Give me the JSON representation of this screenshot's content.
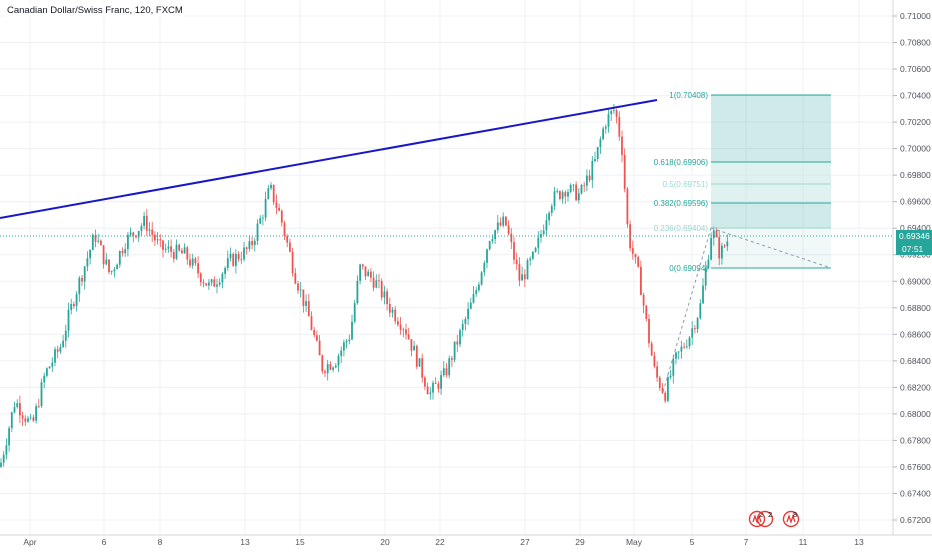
{
  "header": {
    "title": "Canadian Dollar/Swiss Franc, 120, FXCM"
  },
  "colors": {
    "up": "#26a69a",
    "down": "#ef5350",
    "trendline": "#1818c8",
    "fib_fill": "#26a69a",
    "grid": "#eef0f4",
    "event": "#e53935"
  },
  "price_axis": {
    "labels": [
      "0.71000",
      "0.70800",
      "0.70600",
      "0.70400",
      "0.70200",
      "0.70000",
      "0.69800",
      "0.69600",
      "0.69400",
      "0.69200",
      "0.69000",
      "0.68800",
      "0.68600",
      "0.68400",
      "0.68200",
      "0.68000",
      "0.67800",
      "0.67600",
      "0.67400",
      "0.67200"
    ],
    "last_price": "0.69346",
    "countdown": "07:51"
  },
  "time_axis": {
    "labels": [
      "Apr",
      "6",
      "8",
      "13",
      "15",
      "20",
      "22",
      "27",
      "29",
      "May",
      "5",
      "7",
      "11",
      "13"
    ]
  },
  "fibonacci": {
    "levels": [
      {
        "ratio": 1,
        "label": "1(0.70408)"
      },
      {
        "ratio": 0.618,
        "label": "0.618(0.69906)"
      },
      {
        "ratio": 0.5,
        "label": "0.5(0.69751)"
      },
      {
        "ratio": 0.382,
        "label": "0.382(0.69596)"
      },
      {
        "ratio": 0.236,
        "label": "0.236(0.69404)"
      },
      {
        "ratio": 0,
        "label": "0(0.69094)"
      }
    ]
  },
  "events": [
    {
      "icon": "economic-event-icon",
      "count": "2"
    },
    {
      "icon": "economic-event-icon",
      "count": "2"
    },
    {
      "icon": "economic-event-icon",
      "count": "8"
    }
  ],
  "chart_data": {
    "type": "candlestick",
    "symbol": "CADCHF",
    "interval": "120",
    "ylim": [
      0.671,
      0.7115
    ],
    "last": 0.69346,
    "price_path": [
      [
        0,
        0.676
      ],
      [
        15,
        0.681
      ],
      [
        32,
        0.679
      ],
      [
        45,
        0.683
      ],
      [
        60,
        0.685
      ],
      [
        75,
        0.689
      ],
      [
        95,
        0.6935
      ],
      [
        110,
        0.6905
      ],
      [
        125,
        0.693
      ],
      [
        145,
        0.6945
      ],
      [
        160,
        0.6925
      ],
      [
        185,
        0.692
      ],
      [
        210,
        0.6895
      ],
      [
        230,
        0.6915
      ],
      [
        250,
        0.6925
      ],
      [
        262,
        0.695
      ],
      [
        270,
        0.697
      ],
      [
        280,
        0.695
      ],
      [
        295,
        0.6905
      ],
      [
        310,
        0.687
      ],
      [
        322,
        0.6835
      ],
      [
        335,
        0.684
      ],
      [
        350,
        0.686
      ],
      [
        360,
        0.691
      ],
      [
        375,
        0.69
      ],
      [
        390,
        0.688
      ],
      [
        405,
        0.6865
      ],
      [
        420,
        0.6835
      ],
      [
        430,
        0.6815
      ],
      [
        445,
        0.683
      ],
      [
        460,
        0.686
      ],
      [
        475,
        0.689
      ],
      [
        490,
        0.6935
      ],
      [
        505,
        0.6945
      ],
      [
        520,
        0.69
      ],
      [
        535,
        0.692
      ],
      [
        550,
        0.696
      ],
      [
        565,
        0.697
      ],
      [
        580,
        0.6965
      ],
      [
        595,
        0.699
      ],
      [
        605,
        0.702
      ],
      [
        615,
        0.703
      ],
      [
        622,
        0.7
      ],
      [
        628,
        0.6935
      ],
      [
        640,
        0.69
      ],
      [
        648,
        0.686
      ],
      [
        655,
        0.683
      ],
      [
        665,
        0.6815
      ],
      [
        675,
        0.684
      ],
      [
        690,
        0.686
      ],
      [
        700,
        0.688
      ],
      [
        712,
        0.694
      ],
      [
        720,
        0.692
      ],
      [
        730,
        0.6935
      ]
    ]
  }
}
